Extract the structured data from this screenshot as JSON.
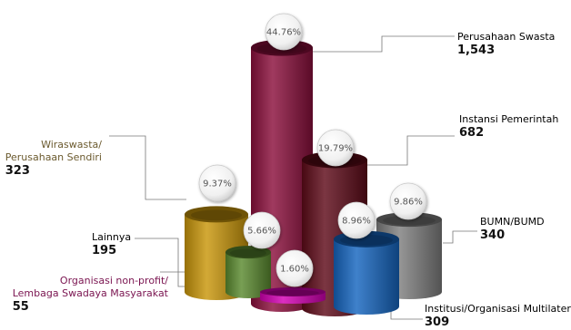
{
  "chart_data": {
    "type": "bar",
    "categories": [
      "Perusahaan Swasta",
      "Instansi Pemerintah",
      "Wiraswasta/ Perusahaan Sendiri",
      "BUMN/BUMD",
      "Institusi/Organisasi Multilateral",
      "Lainnya",
      "Organisasi non-profit/ Lembaga Swadaya Masyarakat"
    ],
    "values": [
      1543,
      682,
      323,
      340,
      309,
      195,
      55
    ],
    "percent_labels": [
      "44.76%",
      "19.79%",
      "9.37%",
      "9.86%",
      "8.96%",
      "5.66%",
      "1.60%"
    ],
    "colors": [
      "#8b0f3c",
      "#5e0a18",
      "#c9960a",
      "#7f7f7f",
      "#1565c0",
      "#5a8a2f",
      "#d400b4"
    ],
    "labels": [
      {
        "line1": "Perusahaan Swasta",
        "value": "1,543",
        "color": "#222222"
      },
      {
        "line1": "Instansi Pemerintah",
        "value": "682",
        "color": "#222222"
      },
      {
        "line1": "Wiraswasta/",
        "line2": "Perusahaan Sendiri",
        "value": "323",
        "color": "#6b5a2e"
      },
      {
        "line1": "BUMN/BUMD",
        "value": "340",
        "color": "#222222"
      },
      {
        "line1": "Institusi/Organisasi Multilateral",
        "value": "309",
        "color": "#222222"
      },
      {
        "line1": "Lainnya",
        "value": "195",
        "color": "#222222"
      },
      {
        "line1": "Organisasi non-profit/",
        "line2": "Lembaga Swadaya Masyarakat",
        "value": "55",
        "color": "#7a1450"
      }
    ]
  }
}
